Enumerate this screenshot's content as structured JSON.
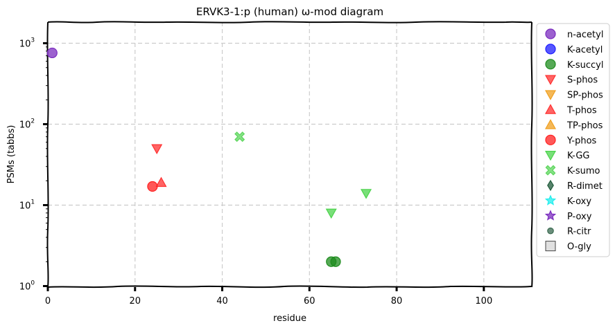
{
  "chart_data": {
    "type": "scatter",
    "title": "ERVK3-1:p (human) ω-mod diagram",
    "xlabel": "residue",
    "ylabel": "PSMs (tabbs)",
    "xlim": [
      0,
      111
    ],
    "ylim": [
      1,
      2000
    ],
    "yscale": "log",
    "grid": true,
    "legend_position": "outside-right",
    "x_ticks": [
      {
        "value": 0,
        "label": "0"
      },
      {
        "value": 20,
        "label": "20"
      },
      {
        "value": 40,
        "label": "40"
      },
      {
        "value": 60,
        "label": "60"
      },
      {
        "value": 80,
        "label": "80"
      },
      {
        "value": 100,
        "label": "100"
      }
    ],
    "y_ticks": [
      {
        "value": 1,
        "base": "10",
        "exp": "0"
      },
      {
        "value": 10,
        "base": "10",
        "exp": "1"
      },
      {
        "value": 100,
        "base": "10",
        "exp": "2"
      },
      {
        "value": 1000,
        "base": "10",
        "exp": "3"
      }
    ],
    "series": [
      {
        "name": "n-acetyl",
        "marker": "circle",
        "color": "#7b2cbf",
        "points": [
          {
            "x": 1,
            "y": 760
          }
        ]
      },
      {
        "name": "K-acetyl",
        "marker": "circle",
        "color": "#1f1fff",
        "points": []
      },
      {
        "name": "K-succyl",
        "marker": "circle",
        "color": "#1e8c1e",
        "points": [
          {
            "x": 65,
            "y": 2
          },
          {
            "x": 66,
            "y": 2
          }
        ]
      },
      {
        "name": "S-phos",
        "marker": "triangle-down",
        "color": "#ff3030",
        "points": [
          {
            "x": 25,
            "y": 50
          }
        ]
      },
      {
        "name": "SP-phos",
        "marker": "triangle-down",
        "color": "#f0a020",
        "points": []
      },
      {
        "name": "T-phos",
        "marker": "triangle-up",
        "color": "#ff3030",
        "points": [
          {
            "x": 26,
            "y": 19
          }
        ]
      },
      {
        "name": "TP-phos",
        "marker": "triangle-up",
        "color": "#f0a020",
        "points": []
      },
      {
        "name": "Y-phos",
        "marker": "circle",
        "color": "#ff2020",
        "points": [
          {
            "x": 24,
            "y": 17
          }
        ]
      },
      {
        "name": "K-GG",
        "marker": "triangle-down",
        "color": "#4cd44c",
        "points": [
          {
            "x": 65,
            "y": 8
          },
          {
            "x": 73,
            "y": 14
          }
        ]
      },
      {
        "name": "K-sumo",
        "marker": "x",
        "color": "#5cd65c",
        "points": [
          {
            "x": 44,
            "y": 70
          }
        ]
      },
      {
        "name": "R-dimet",
        "marker": "diamond",
        "color": "#1f5a3a",
        "points": []
      },
      {
        "name": "K-oxy",
        "marker": "star",
        "color": "#22eeee",
        "points": []
      },
      {
        "name": "P-oxy",
        "marker": "star",
        "color": "#7b2cbf",
        "points": []
      },
      {
        "name": "R-citr",
        "marker": "small-circle",
        "color": "#3a6a50",
        "points": []
      },
      {
        "name": "O-gly",
        "marker": "square",
        "color": "#e0e0e0",
        "points": []
      }
    ]
  }
}
